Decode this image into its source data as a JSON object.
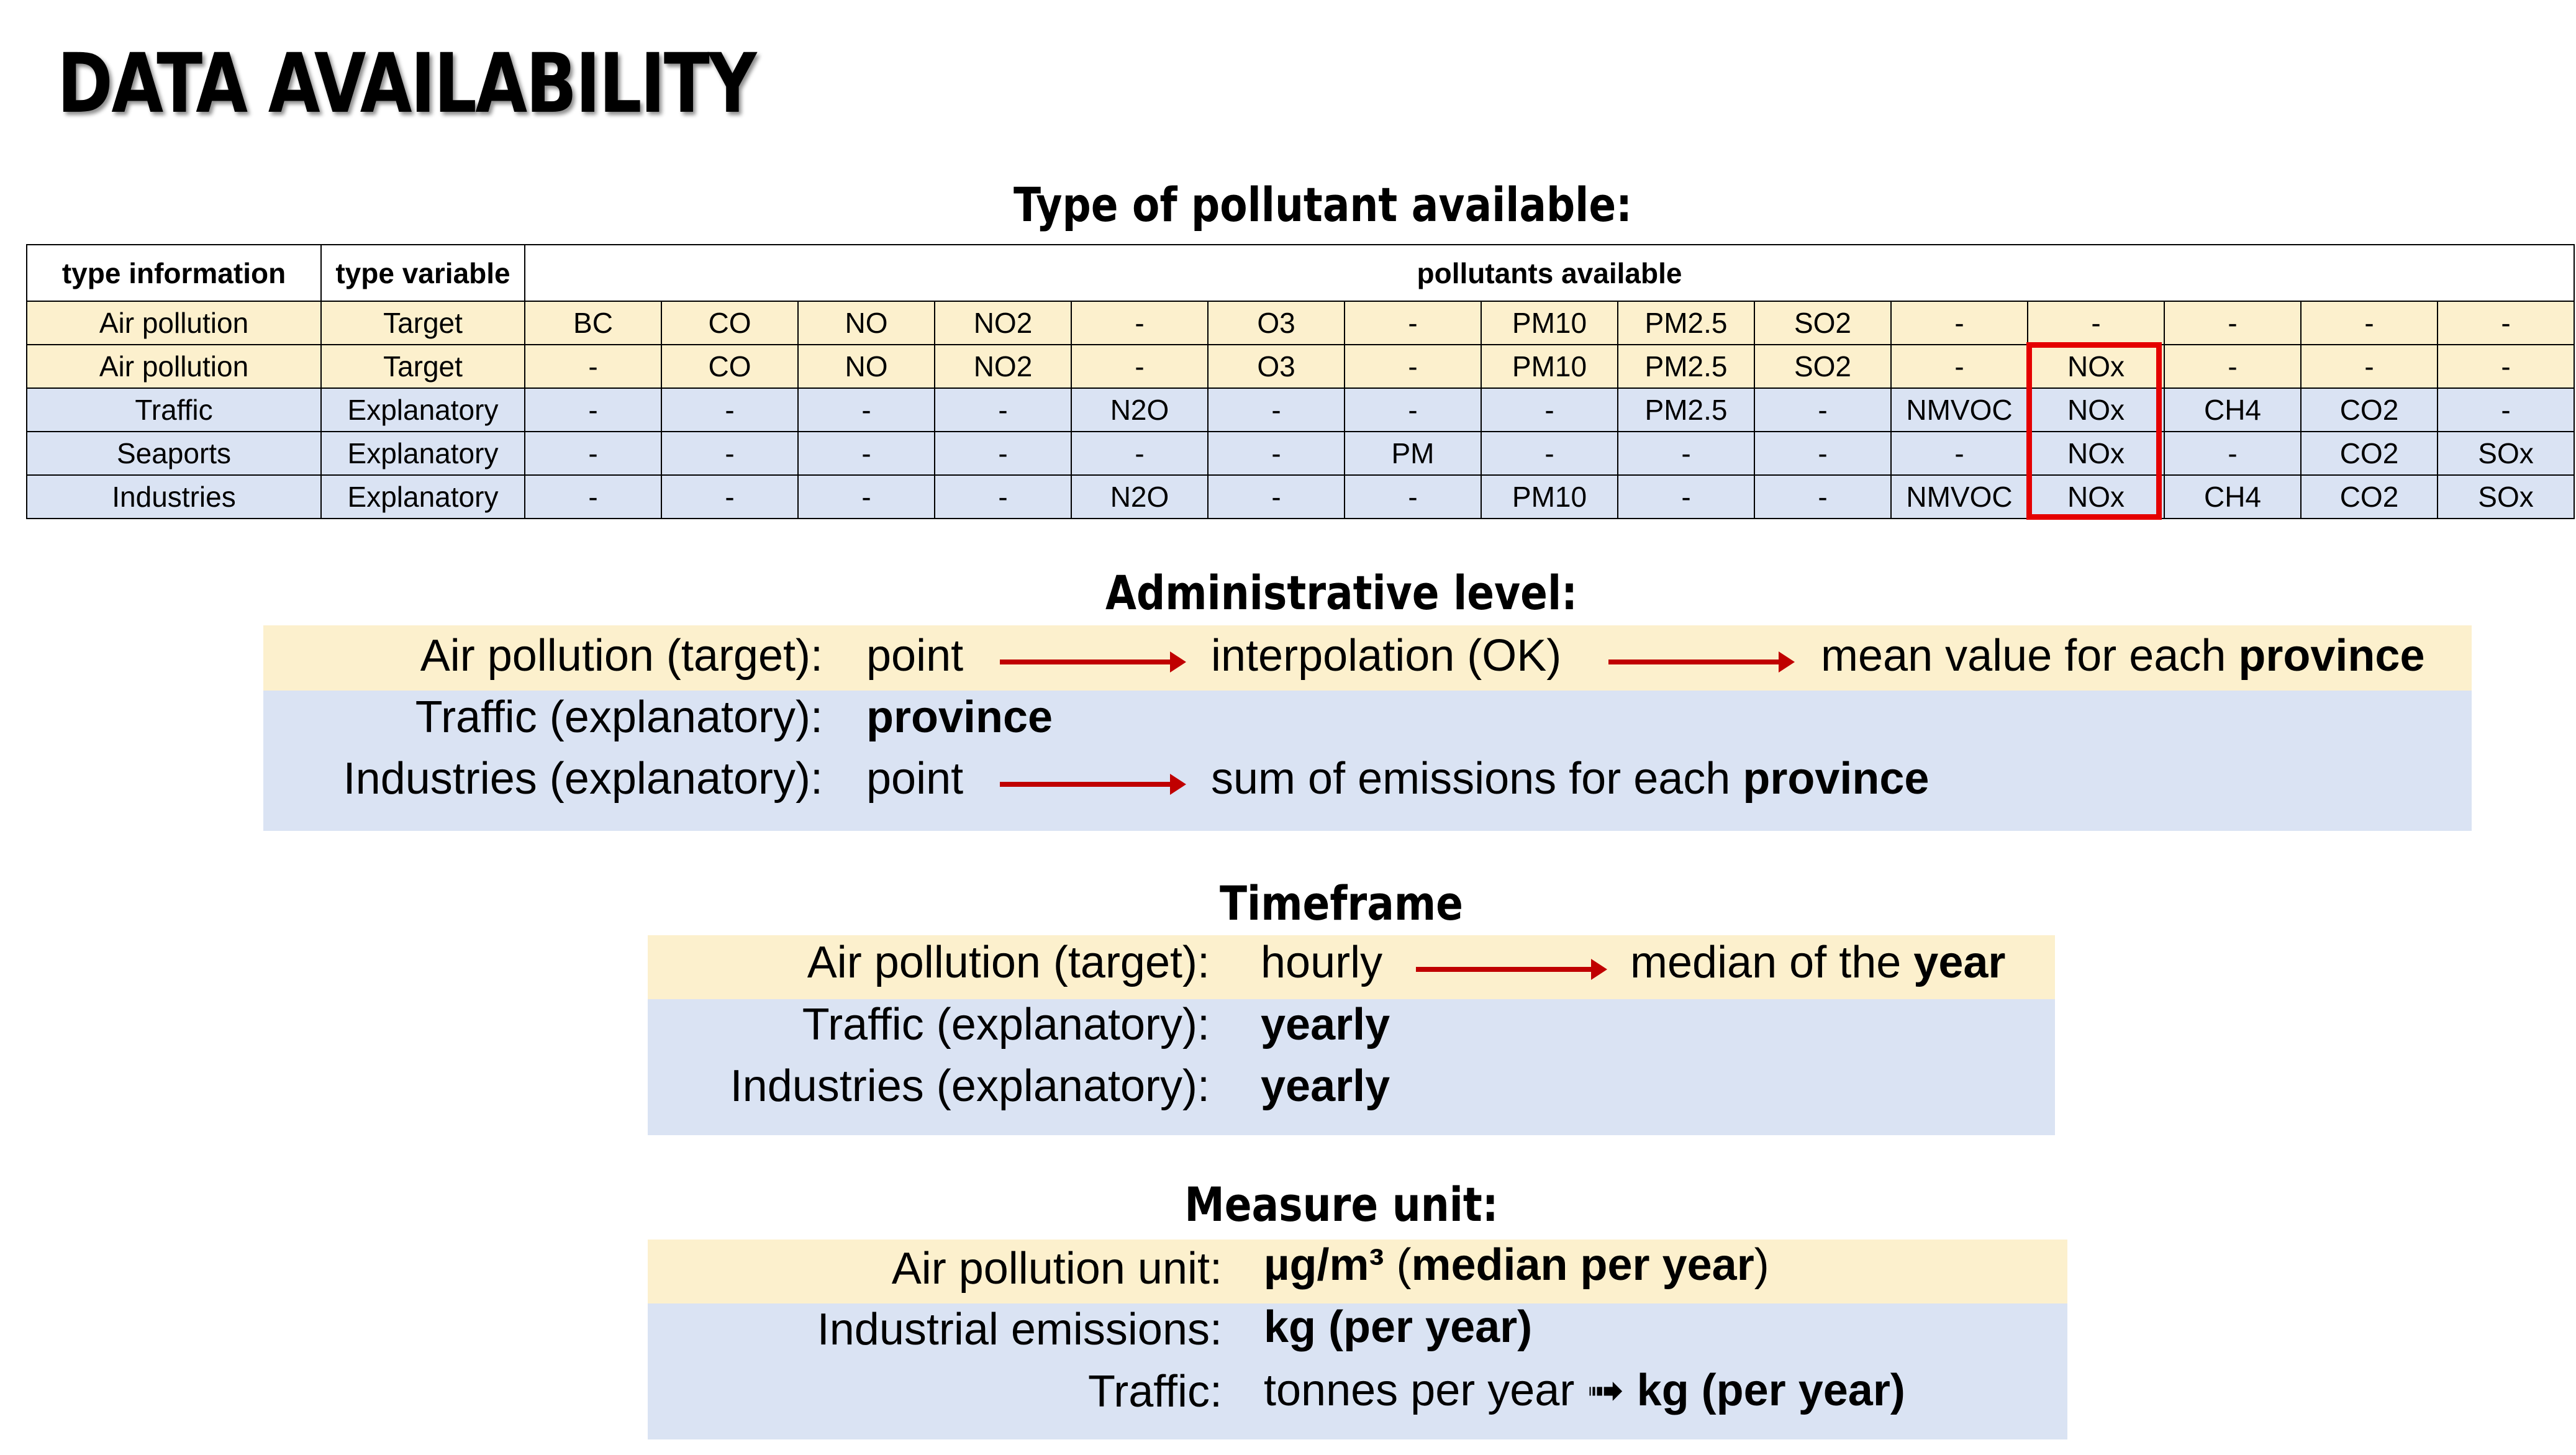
{
  "title": "DATA AVAILABILITY",
  "pollutant_section": {
    "heading": "Type of pollutant available:",
    "headers": [
      "type information",
      "type variable",
      "pollutants available"
    ],
    "rows": [
      {
        "info": "Air pollution",
        "variable": "Target",
        "cells": [
          "BC",
          "CO",
          "NO",
          "NO2",
          "-",
          "O3",
          "-",
          "PM10",
          "PM2.5",
          "SO2",
          "-",
          "-",
          "-",
          "-",
          "-"
        ]
      },
      {
        "info": "Air pollution",
        "variable": "Target",
        "cells": [
          "-",
          "CO",
          "NO",
          "NO2",
          "-",
          "O3",
          "-",
          "PM10",
          "PM2.5",
          "SO2",
          "-",
          "NOx",
          "-",
          "-",
          "-"
        ]
      },
      {
        "info": "Traffic",
        "variable": "Explanatory",
        "cells": [
          "-",
          "-",
          "-",
          "-",
          "N2O",
          "-",
          "-",
          "-",
          "PM2.5",
          "-",
          "NMVOC",
          "NOx",
          "CH4",
          "CO2",
          "-"
        ]
      },
      {
        "info": "Seaports",
        "variable": "Explanatory",
        "cells": [
          "-",
          "-",
          "-",
          "-",
          "-",
          "-",
          "PM",
          "-",
          "-",
          "-",
          "-",
          "NOx",
          "-",
          "CO2",
          "SOx"
        ]
      },
      {
        "info": "Industries",
        "variable": "Explanatory",
        "cells": [
          "-",
          "-",
          "-",
          "-",
          "N2O",
          "-",
          "-",
          "PM10",
          "-",
          "-",
          "NMVOC",
          "NOx",
          "CH4",
          "CO2",
          "SOx"
        ]
      }
    ],
    "highlight_color": "#e50000"
  },
  "admin_section": {
    "heading": "Administrative level:",
    "rows": [
      {
        "label": "Air pollution (target):",
        "a": "point",
        "b": "interpolation (OK)",
        "c_pre": "mean value for each ",
        "c_bold": "province"
      },
      {
        "label": "Traffic (explanatory):",
        "a_bold": "province"
      },
      {
        "label": "Industries (explanatory):",
        "a": "point",
        "b_pre": "sum of emissions for each ",
        "b_bold": "province"
      }
    ]
  },
  "time_section": {
    "heading": "Timeframe",
    "rows": [
      {
        "label": "Air pollution (target):",
        "a": "hourly",
        "b_pre": "median of the ",
        "b_bold": "year"
      },
      {
        "label": "Traffic (explanatory):",
        "a_bold": "yearly"
      },
      {
        "label": "Industries (explanatory):",
        "a_bold": "yearly"
      }
    ]
  },
  "unit_section": {
    "heading": "Measure unit:",
    "rows": [
      {
        "label": "Air pollution unit:",
        "bold1": "µg/m³",
        "mid": " (",
        "bold2": "median per year",
        "end": ")"
      },
      {
        "label": "Industrial emissions:",
        "bold1": "kg (per year)"
      },
      {
        "label": "Traffic:",
        "pre": "tonnes per year ",
        "arrow": "➟",
        "bold1": " kg (per year)"
      }
    ]
  },
  "colors": {
    "yellow_band": "#fcf0cd",
    "blue_band": "#dae3f3",
    "arrow": "#c00000"
  }
}
